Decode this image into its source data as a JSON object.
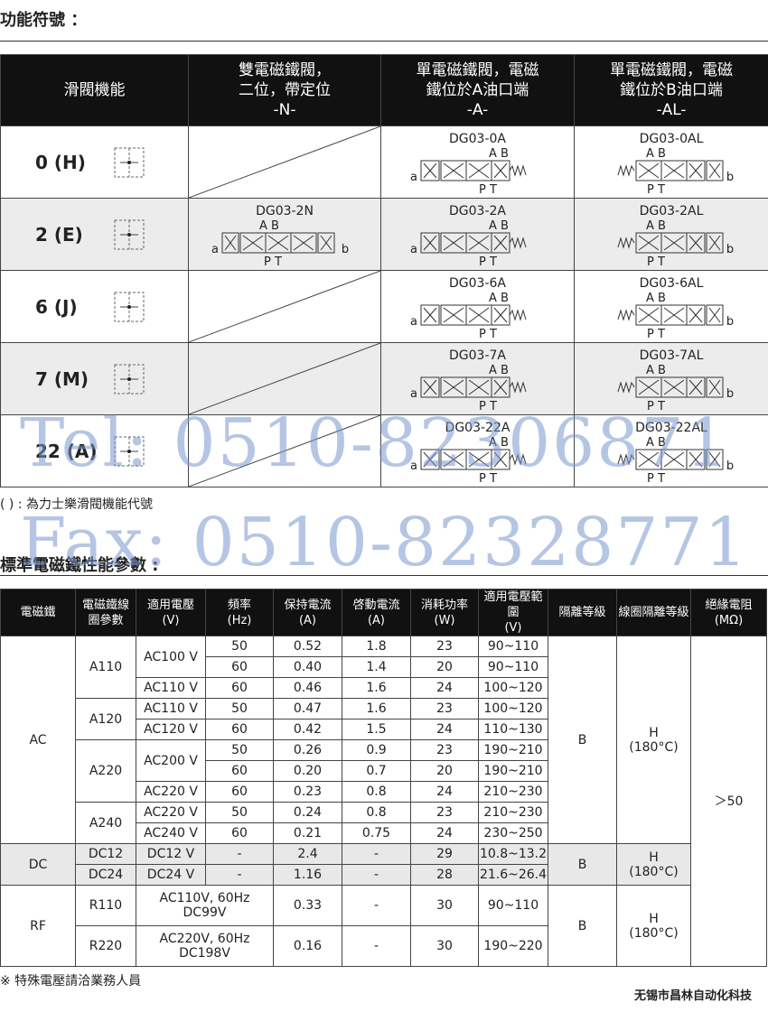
{
  "section1_title": "功能符號 ：",
  "table1": {
    "header": [
      "滑閥機能",
      "雙電磁鐵閥，\n二位，帶定位\n-N-",
      "單電磁鐵閥，電磁\n鐵位於A油口端\n-A-",
      "單電磁鐵閥，電磁\n鐵位於B油口端\n-AL-"
    ],
    "symbol_labels": {
      "ports_top": "A B",
      "ports_bottom": "P T",
      "solenoid_a": "a",
      "solenoid_b": "b"
    },
    "rows": [
      {
        "function": "0 (H)",
        "A": "DG03-0A",
        "AL": "DG03-0AL"
      },
      {
        "function": "2 (E)",
        "N": "DG03-2N",
        "A": "DG03-2A",
        "AL": "DG03-2AL"
      },
      {
        "function": "6 (J)",
        "A": "DG03-6A",
        "AL": "DG03-6AL"
      },
      {
        "function": "7 (M)",
        "A": "DG03-7A",
        "AL": "DG03-7AL"
      },
      {
        "function": "22 (A)",
        "A": "DG03-22A",
        "AL": "DG03-22AL"
      }
    ]
  },
  "note1": "( ) : 為力士樂滑閥機能代號",
  "watermark": [
    "Tel: 0510-82306871",
    "Fax: 0510-82328771"
  ],
  "section2_title": "標準電磁鐵性能參數 :",
  "table2": {
    "header": [
      "電磁鐵",
      "電磁鐵線\n圈參數",
      "適用電壓\n(V)",
      "頻率\n(Hz)",
      "保持電流\n(A)",
      "啓動電流\n(A)",
      "消耗功率\n(W)",
      "適用電壓範圍\n(V)",
      "隔離等級",
      "線圈隔離等級",
      "絕緣電阻\n(MΩ)"
    ],
    "rows": [
      [
        "AC",
        "A110",
        "AC100 V",
        "50",
        "0.52",
        "1.8",
        "23",
        "90~110",
        "B",
        "H\n(180°C)",
        "＞50"
      ],
      [
        "60",
        "0.40",
        "1.4",
        "20",
        "90~110"
      ],
      [
        "AC110 V",
        "60",
        "0.46",
        "1.6",
        "24",
        "100~120"
      ],
      [
        "A120",
        "AC110 V",
        "50",
        "0.47",
        "1.6",
        "23",
        "100~120"
      ],
      [
        "AC120 V",
        "60",
        "0.42",
        "1.5",
        "24",
        "110~130"
      ],
      [
        "A220",
        "AC200 V",
        "50",
        "0.26",
        "0.9",
        "23",
        "190~210"
      ],
      [
        "60",
        "0.20",
        "0.7",
        "20",
        "190~210"
      ],
      [
        "AC220 V",
        "60",
        "0.23",
        "0.8",
        "24",
        "210~230"
      ],
      [
        "A240",
        "AC220 V",
        "50",
        "0.24",
        "0.8",
        "23",
        "210~230"
      ],
      [
        "AC240 V",
        "60",
        "0.21",
        "0.75",
        "24",
        "230~250"
      ],
      [
        "DC",
        "DC12",
        "DC12 V",
        "-",
        "2.4",
        "-",
        "29",
        "10.8~13.2",
        "B",
        "H\n(180°C)"
      ],
      [
        "DC24",
        "DC24 V",
        "-",
        "1.16",
        "-",
        "28",
        "21.6~26.4"
      ],
      [
        "RF",
        "R110",
        "AC110V, 60Hz\nDC99V",
        "0.33",
        "-",
        "30",
        "90~110",
        "B",
        "H\n(180°C)"
      ],
      [
        "R220",
        "AC220V, 60Hz\nDC198V",
        "0.16",
        "-",
        "30",
        "190~220"
      ]
    ]
  },
  "note2": "※ 特殊電壓請洽業務人員",
  "footer": "无锡市昌林自动化科技"
}
